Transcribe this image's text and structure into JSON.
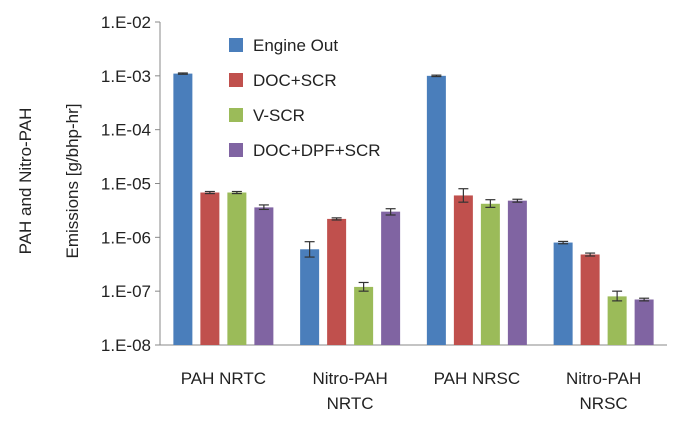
{
  "chart_data": {
    "type": "bar",
    "scale": "log",
    "title": "",
    "ylabel_lines": [
      "PAH and Nitro-PAH",
      "Emissions [g/bhp-hr]"
    ],
    "ylim": [
      1e-08,
      0.01
    ],
    "ytick_values": [
      1e-08,
      1e-07,
      1e-06,
      1e-05,
      0.0001,
      0.001,
      0.01
    ],
    "ytick_labels": [
      "1.E-08",
      "1.E-07",
      "1.E-06",
      "1.E-05",
      "1.E-04",
      "1.E-03",
      "1.E-02"
    ],
    "categories": [
      {
        "name": "PAH NRTC",
        "lines": [
          "PAH NRTC"
        ]
      },
      {
        "name": "Nitro-PAH NRTC",
        "lines": [
          "Nitro-PAH",
          "NRTC"
        ]
      },
      {
        "name": "PAH NRSC",
        "lines": [
          "PAH NRSC"
        ]
      },
      {
        "name": "Nitro-PAH NRSC",
        "lines": [
          "Nitro-PAH",
          "NRSC"
        ]
      }
    ],
    "series": [
      {
        "name": "Engine Out",
        "color": "#4a7ebb",
        "values": [
          0.0011,
          6e-07,
          0.001,
          8e-07
        ],
        "err_low": [
          0.00107,
          4.3e-07,
          0.00097,
          7.6e-07
        ],
        "err_high": [
          0.00113,
          8.3e-07,
          0.00103,
          8.4e-07
        ]
      },
      {
        "name": "DOC+SCR",
        "color": "#c0504d",
        "values": [
          6.8e-06,
          2.2e-06,
          6e-06,
          4.8e-07
        ],
        "err_low": [
          6.5e-06,
          2.1e-06,
          4.5e-06,
          4.5e-07
        ],
        "err_high": [
          7.1e-06,
          2.3e-06,
          8e-06,
          5.1e-07
        ]
      },
      {
        "name": "V-SCR",
        "color": "#9bbb59",
        "values": [
          6.8e-06,
          1.2e-07,
          4.2e-06,
          8e-08
        ],
        "err_low": [
          6.5e-06,
          1e-07,
          3.6e-06,
          6.6e-08
        ],
        "err_high": [
          7.1e-06,
          1.45e-07,
          5e-06,
          1e-07
        ]
      },
      {
        "name": "DOC+DPF+SCR",
        "color": "#8064a2",
        "values": [
          3.6e-06,
          3e-06,
          4.8e-06,
          7e-08
        ],
        "err_low": [
          3.3e-06,
          2.6e-06,
          4.5e-06,
          6.6e-08
        ],
        "err_high": [
          4e-06,
          3.4e-06,
          5.1e-06,
          7.4e-08
        ]
      }
    ],
    "legend_position": "top-left inside plot",
    "grid": false
  }
}
